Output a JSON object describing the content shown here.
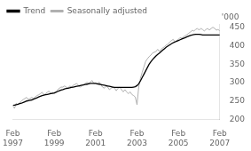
{
  "chart_data": {
    "type": "line",
    "ylabel": "'000",
    "categories": [
      "Feb\n1997",
      null,
      null,
      null,
      null,
      null,
      null,
      null,
      null,
      null,
      null,
      null,
      null,
      null,
      null,
      null,
      null,
      null,
      null,
      null,
      null,
      null,
      null,
      null,
      "Feb\n1999",
      null,
      null,
      null,
      null,
      null,
      null,
      null,
      null,
      null,
      null,
      null,
      null,
      null,
      null,
      null,
      null,
      null,
      null,
      null,
      null,
      null,
      null,
      null,
      "Feb\n2001",
      null,
      null,
      null,
      null,
      null,
      null,
      null,
      null,
      null,
      null,
      null,
      null,
      null,
      null,
      null,
      null,
      null,
      null,
      null,
      null,
      null,
      null,
      null,
      "Feb\n2003",
      null,
      null,
      null,
      null,
      null,
      null,
      null,
      null,
      null,
      null,
      null,
      null,
      null,
      null,
      null,
      null,
      null,
      null,
      null,
      null,
      null,
      null,
      null,
      "Feb\n2005",
      null,
      null,
      null,
      null,
      null,
      null,
      null,
      null,
      null,
      null,
      null,
      null,
      null,
      null,
      null,
      null,
      null,
      null,
      null,
      null,
      null,
      null,
      null,
      "Feb\n2007"
    ],
    "series": [
      {
        "name": "Trend",
        "color": "#000000",
        "values": [
          238,
          239,
          240,
          241,
          243,
          244,
          246,
          248,
          250,
          251,
          252,
          253,
          255,
          257,
          259,
          261,
          263,
          265,
          266,
          267,
          268,
          269,
          270,
          271,
          272,
          274,
          276,
          278,
          280,
          281,
          283,
          284,
          285,
          286,
          287,
          288,
          289,
          290,
          291,
          292,
          293,
          294,
          295,
          296,
          297,
          298,
          298,
          298,
          298,
          297,
          296,
          295,
          294,
          293,
          292,
          291,
          290,
          289,
          288,
          287,
          287,
          287,
          287,
          287,
          287,
          287,
          287,
          287,
          287,
          287,
          288,
          289,
          292,
          297,
          305,
          314,
          323,
          332,
          341,
          350,
          357,
          363,
          368,
          373,
          377,
          381,
          385,
          389,
          393,
          397,
          400,
          403,
          406,
          409,
          411,
          413,
          415,
          417,
          419,
          421,
          423,
          425,
          427,
          429,
          430,
          431,
          432,
          432,
          432,
          431,
          430,
          430,
          430,
          430,
          430,
          430,
          430,
          430,
          430,
          430,
          430
        ]
      },
      {
        "name": "Seasonally adjusted",
        "color": "#b0b0b0",
        "values": [
          236,
          230,
          244,
          240,
          246,
          250,
          254,
          257,
          260,
          254,
          257,
          260,
          257,
          261,
          265,
          267,
          270,
          274,
          267,
          270,
          274,
          277,
          270,
          274,
          270,
          274,
          281,
          285,
          288,
          288,
          291,
          288,
          285,
          291,
          288,
          293,
          295,
          298,
          293,
          288,
          291,
          295,
          298,
          301,
          298,
          302,
          306,
          298,
          298,
          295,
          302,
          295,
          288,
          285,
          291,
          288,
          281,
          285,
          288,
          285,
          278,
          285,
          288,
          281,
          275,
          281,
          275,
          270,
          275,
          268,
          265,
          261,
          240,
          288,
          312,
          328,
          343,
          358,
          365,
          371,
          375,
          381,
          383,
          385,
          391,
          385,
          391,
          395,
          398,
          403,
          405,
          411,
          415,
          418,
          411,
          415,
          418,
          423,
          421,
          425,
          428,
          431,
          435,
          438,
          443,
          441,
          445,
          448,
          443,
          448,
          445,
          441,
          445,
          448,
          443,
          448,
          451,
          448,
          443,
          445,
          441
        ]
      }
    ],
    "ylim": [
      200,
      460
    ],
    "yticks": [
      200,
      250,
      300,
      350,
      400,
      450
    ],
    "grid": false,
    "legend": "upper left"
  }
}
